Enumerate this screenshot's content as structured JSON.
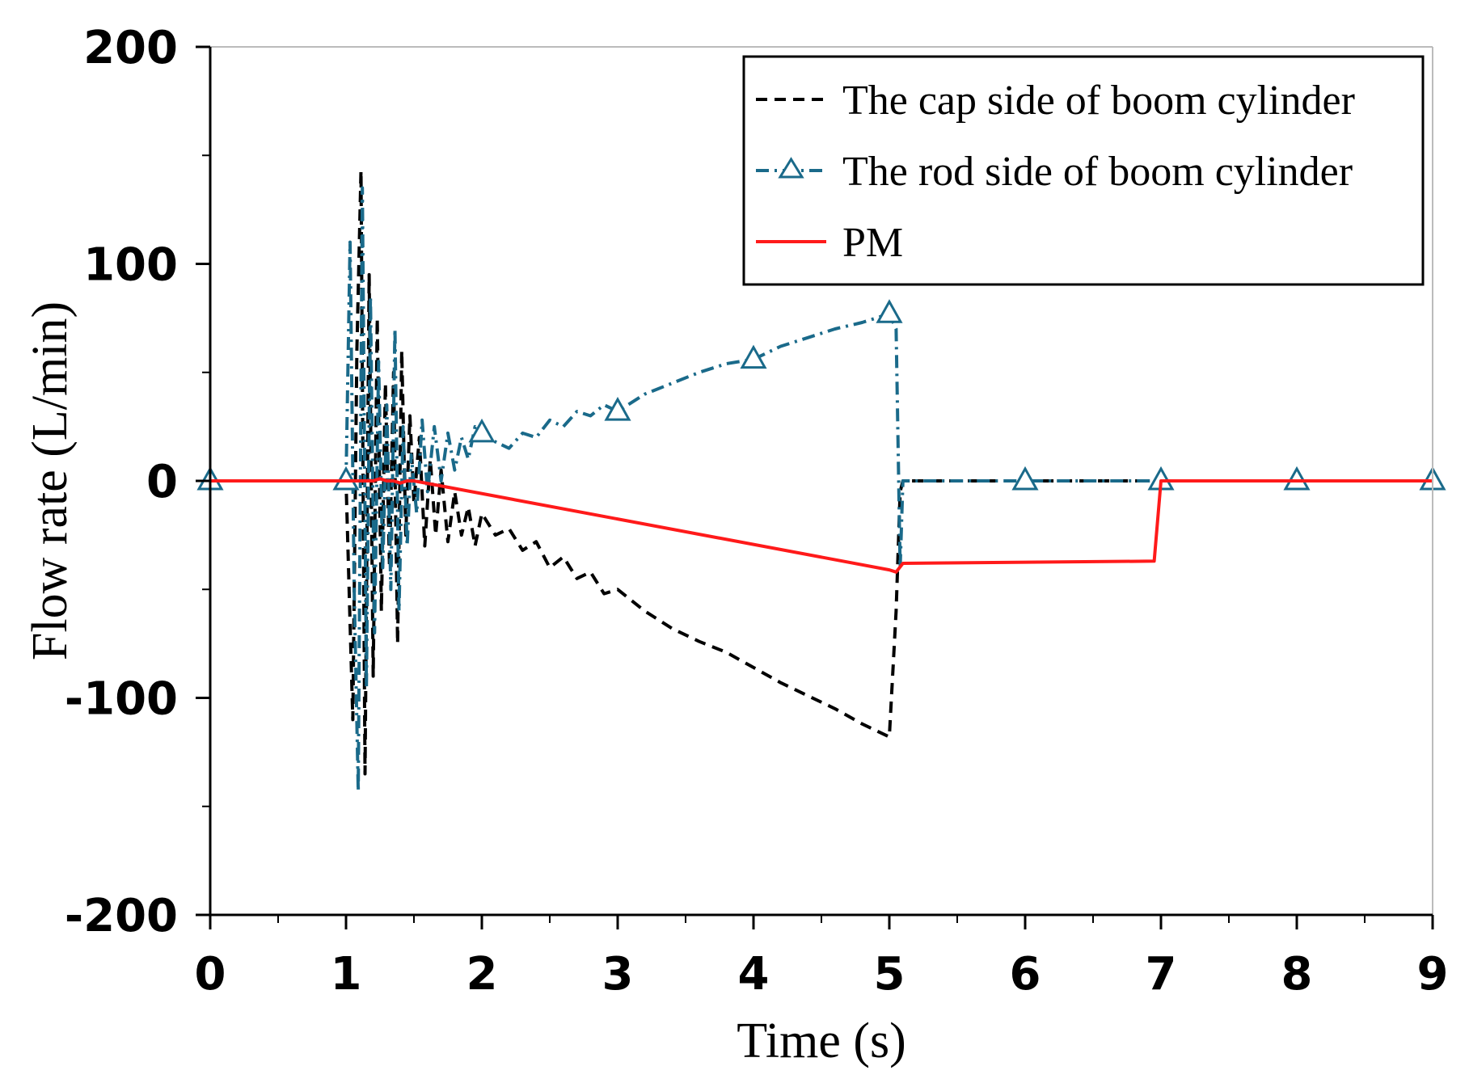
{
  "chart_data": {
    "type": "line",
    "title": "",
    "xlabel": "Time (s)",
    "ylabel": "Flow rate (L/min)",
    "xlim": [
      0,
      9
    ],
    "ylim": [
      -200,
      200
    ],
    "x_ticks": [
      0,
      1,
      2,
      3,
      4,
      5,
      6,
      7,
      8,
      9
    ],
    "x_tick_labels": [
      "0",
      "1",
      "2",
      "3",
      "4",
      "5",
      "6",
      "7",
      "8",
      "9"
    ],
    "y_ticks": [
      -200,
      -100,
      0,
      100,
      200
    ],
    "y_tick_labels": [
      "-200",
      "-100",
      "0",
      "100",
      "200"
    ],
    "grid": false,
    "legend_position": "top-right",
    "series": [
      {
        "name": "The cap side of boom cylinder",
        "color": "#000000",
        "style": "dashed",
        "marker": "none",
        "x": [
          0,
          1.0,
          1.05,
          1.08,
          1.11,
          1.14,
          1.17,
          1.2,
          1.23,
          1.26,
          1.29,
          1.32,
          1.35,
          1.38,
          1.41,
          1.44,
          1.47,
          1.5,
          1.54,
          1.58,
          1.62,
          1.66,
          1.7,
          1.75,
          1.8,
          1.85,
          1.9,
          1.95,
          2.0,
          2.1,
          2.2,
          2.3,
          2.4,
          2.5,
          2.6,
          2.7,
          2.8,
          2.9,
          3.0,
          3.2,
          3.4,
          3.6,
          3.8,
          4.0,
          4.2,
          4.4,
          4.6,
          4.8,
          5.0,
          5.05,
          5.08,
          5.1,
          6,
          7,
          8,
          9
        ],
        "y": [
          0,
          0,
          -110,
          60,
          143,
          -135,
          95,
          -90,
          75,
          -60,
          45,
          -40,
          50,
          -75,
          60,
          -25,
          30,
          -10,
          20,
          -30,
          10,
          -25,
          5,
          -28,
          -5,
          -25,
          -12,
          -30,
          -15,
          -25,
          -22,
          -32,
          -28,
          -40,
          -35,
          -45,
          -42,
          -52,
          -50,
          -60,
          -68,
          -74,
          -79,
          -86,
          -93,
          -99,
          -105,
          -112,
          -118,
          -60,
          -5,
          0,
          0,
          0,
          0,
          0
        ]
      },
      {
        "name": "The rod side of boom cylinder",
        "color": "#1a6a8a",
        "style": "dash-dot",
        "marker": "triangle",
        "marker_x": [
          0,
          1,
          2,
          3,
          4,
          5,
          6,
          7,
          8,
          9
        ],
        "x": [
          0,
          1.0,
          1.03,
          1.06,
          1.09,
          1.12,
          1.15,
          1.18,
          1.21,
          1.24,
          1.27,
          1.3,
          1.33,
          1.36,
          1.39,
          1.42,
          1.45,
          1.48,
          1.52,
          1.56,
          1.6,
          1.65,
          1.7,
          1.75,
          1.8,
          1.85,
          1.9,
          1.95,
          2.0,
          2.1,
          2.2,
          2.3,
          2.4,
          2.5,
          2.6,
          2.7,
          2.8,
          2.9,
          3.0,
          3.2,
          3.4,
          3.6,
          3.8,
          4.0,
          4.2,
          4.4,
          4.6,
          4.8,
          5.0,
          5.05,
          5.08,
          5.1,
          6,
          7,
          8,
          9
        ],
        "y": [
          0,
          0,
          110,
          -50,
          -143,
          135,
          -95,
          85,
          -70,
          55,
          -40,
          35,
          -50,
          70,
          -60,
          25,
          -30,
          12,
          -15,
          28,
          -5,
          25,
          0,
          22,
          5,
          20,
          10,
          25,
          22,
          18,
          15,
          22,
          20,
          28,
          25,
          32,
          30,
          35,
          32,
          40,
          45,
          50,
          54,
          56,
          62,
          66,
          70,
          73,
          77,
          70,
          -40,
          0,
          0,
          0,
          0,
          0
        ]
      },
      {
        "name": "PM",
        "color": "#ff1a1a",
        "style": "solid",
        "marker": "none",
        "x": [
          0,
          1.0,
          1.2,
          1.25,
          1.3,
          1.35,
          1.4,
          1.45,
          1.5,
          5.0,
          5.05,
          5.1,
          6.95,
          7.0,
          9
        ],
        "y": [
          0,
          0,
          0,
          1,
          0,
          0,
          -1,
          0,
          0,
          -41,
          -42,
          -38,
          -37,
          0,
          0
        ]
      }
    ]
  }
}
